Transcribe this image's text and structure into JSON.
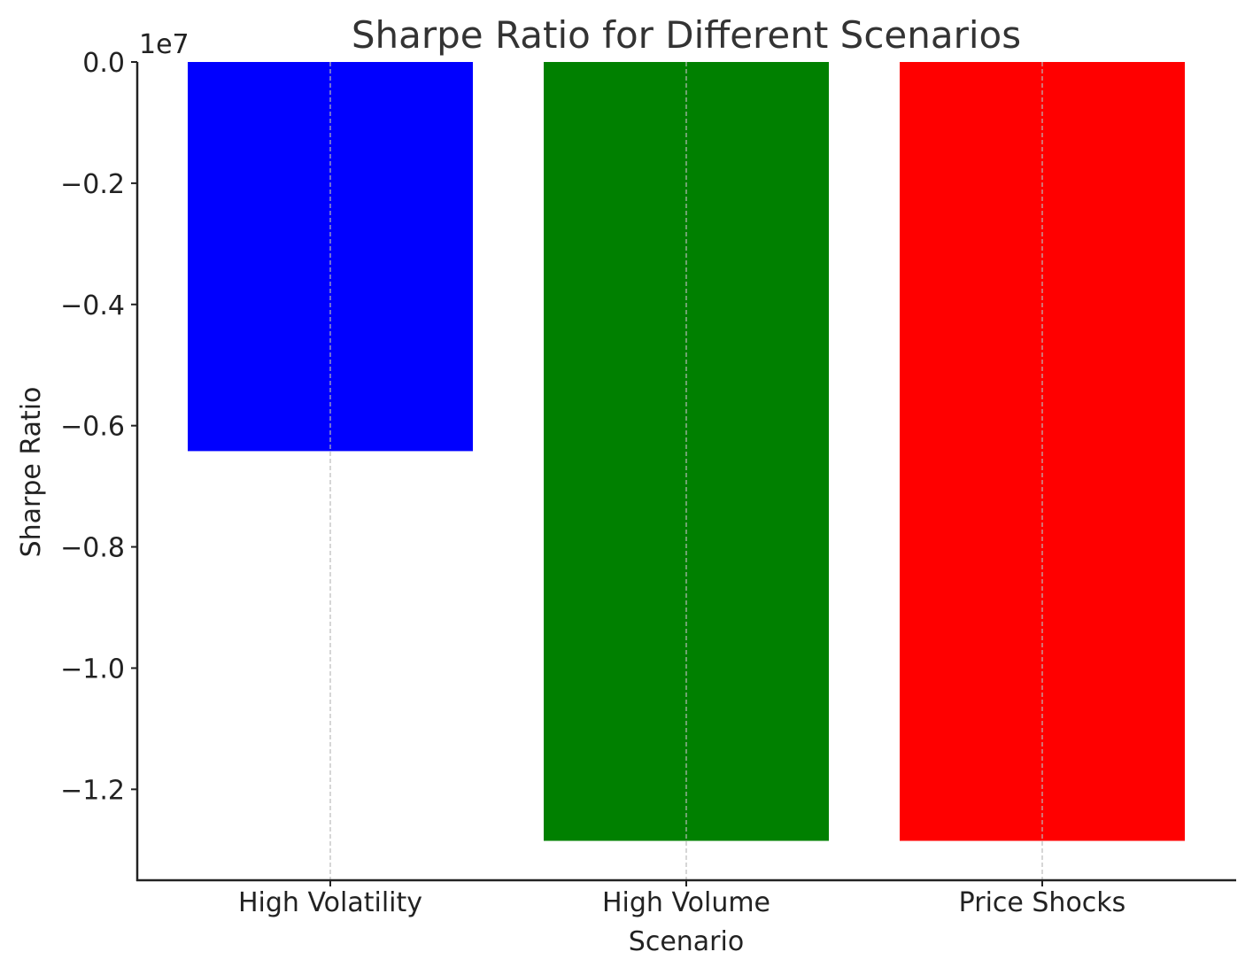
{
  "chart_data": {
    "type": "bar",
    "title": "Sharpe Ratio for Different Scenarios",
    "xlabel": "Scenario",
    "ylabel": "Sharpe Ratio",
    "y_offset_label": "1e7",
    "categories": [
      "High Volatility",
      "High Volume",
      "Price Shocks"
    ],
    "values": [
      -6420000,
      -12850000,
      -12850000
    ],
    "colors": [
      "#0000ff",
      "#008000",
      "#ff0000"
    ],
    "ylim": [
      -13500000,
      0
    ],
    "yticks": [
      0,
      -2000000,
      -4000000,
      -6000000,
      -8000000,
      -10000000,
      -12000000
    ],
    "ytick_labels": [
      "0.0",
      "−0.2",
      "−0.4",
      "−0.6",
      "−0.8",
      "−1.0",
      "−1.2"
    ],
    "grid": "vertical-dashed",
    "legend": "none"
  }
}
